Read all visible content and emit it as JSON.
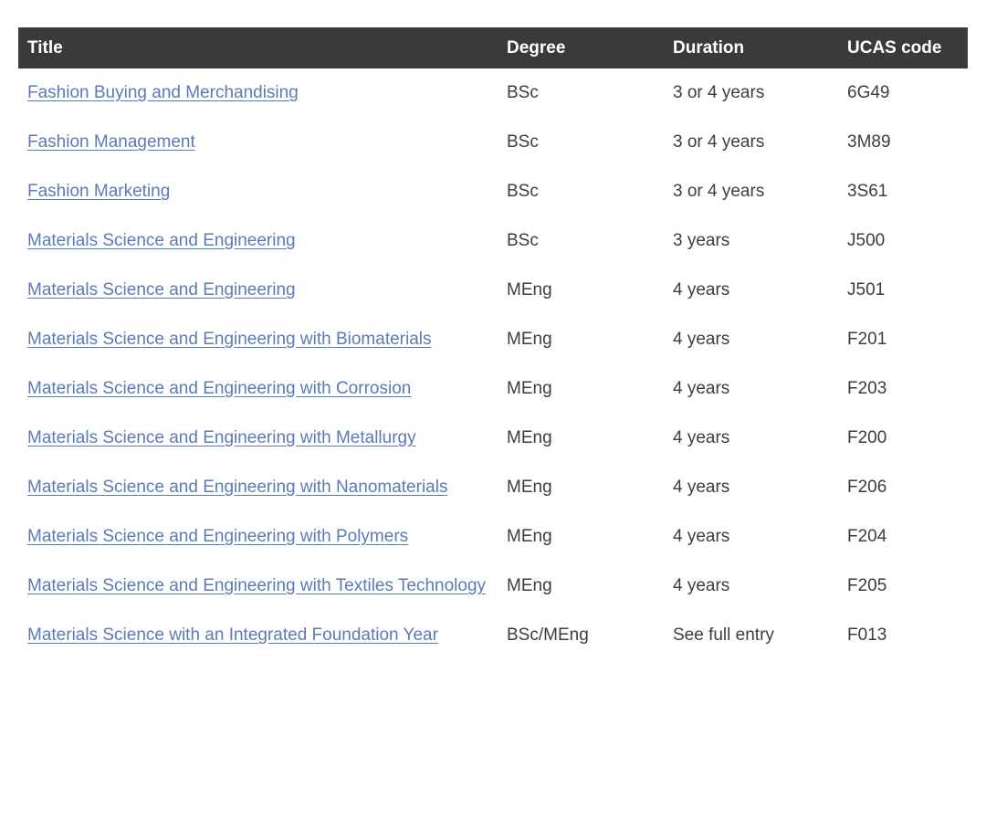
{
  "colors": {
    "header_bg": "#3a3a3c",
    "header_text": "#ffffff",
    "link": "#5b7ab8",
    "body_text": "#3d3d3d",
    "page_bg": "#ffffff"
  },
  "table": {
    "columns": [
      {
        "key": "title",
        "label": "Title"
      },
      {
        "key": "degree",
        "label": "Degree"
      },
      {
        "key": "duration",
        "label": "Duration"
      },
      {
        "key": "ucas_code",
        "label": "UCAS code"
      }
    ],
    "rows": [
      {
        "title": "Fashion Buying and Merchandising",
        "degree": "BSc",
        "duration": "3 or 4 years",
        "ucas_code": "6G49"
      },
      {
        "title": "Fashion Management",
        "degree": "BSc",
        "duration": "3 or 4 years",
        "ucas_code": "3M89"
      },
      {
        "title": "Fashion Marketing",
        "degree": "BSc",
        "duration": "3 or 4 years",
        "ucas_code": "3S61"
      },
      {
        "title": "Materials Science and Engineering",
        "degree": "BSc",
        "duration": "3 years",
        "ucas_code": "J500"
      },
      {
        "title": "Materials Science and Engineering",
        "degree": "MEng",
        "duration": "4 years",
        "ucas_code": "J501"
      },
      {
        "title": "Materials Science and Engineering with Biomaterials",
        "degree": "MEng",
        "duration": "4 years",
        "ucas_code": "F201"
      },
      {
        "title": "Materials Science and Engineering with Corrosion",
        "degree": "MEng",
        "duration": "4 years",
        "ucas_code": "F203"
      },
      {
        "title": "Materials Science and Engineering with Metallurgy",
        "degree": "MEng",
        "duration": "4 years",
        "ucas_code": "F200"
      },
      {
        "title": "Materials Science and Engineering with Nanomaterials",
        "degree": "MEng",
        "duration": "4 years",
        "ucas_code": "F206"
      },
      {
        "title": "Materials Science and Engineering with Polymers",
        "degree": "MEng",
        "duration": "4 years",
        "ucas_code": "F204"
      },
      {
        "title": "Materials Science and Engineering with Textiles Technology",
        "degree": "MEng",
        "duration": "4 years",
        "ucas_code": "F205"
      },
      {
        "title": "Materials Science with an Integrated Foundation Year",
        "degree": "BSc/MEng",
        "duration": "See full entry",
        "ucas_code": "F013"
      }
    ]
  }
}
